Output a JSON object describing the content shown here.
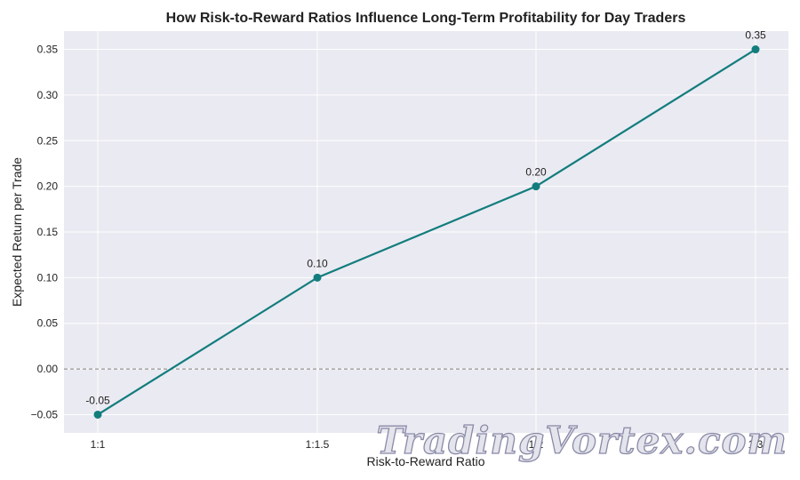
{
  "chart_data": {
    "type": "line",
    "title": "How Risk-to-Reward Ratios Influence Long-Term Profitability for Day Traders",
    "xlabel": "Risk-to-Reward Ratio",
    "ylabel": "Expected Return per Trade",
    "categories": [
      "1:1",
      "1:1.5",
      "1:2",
      "1:3"
    ],
    "values": [
      -0.05,
      0.1,
      0.2,
      0.35
    ],
    "data_labels": [
      "-0.05",
      "0.10",
      "0.20",
      "0.35"
    ],
    "ylim": [
      -0.07,
      0.37
    ],
    "y_ticks": [
      -0.05,
      0.0,
      0.05,
      0.1,
      0.15,
      0.2,
      0.25,
      0.3,
      0.35
    ],
    "y_tick_labels": [
      "−0.05",
      "0.00",
      "0.05",
      "0.10",
      "0.15",
      "0.20",
      "0.25",
      "0.30",
      "0.35"
    ],
    "reference_line": {
      "y": 0,
      "style": "dashed",
      "color": "#808080"
    },
    "grid": true,
    "colors": {
      "line": "#127d7d",
      "background": "#eaeaf2",
      "grid": "#ffffff"
    }
  },
  "watermark": "TradingVortex.com"
}
